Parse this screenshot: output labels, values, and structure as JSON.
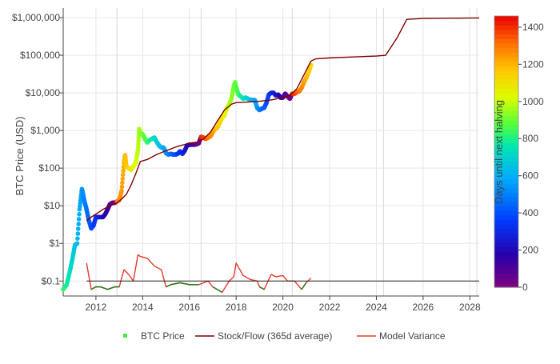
{
  "chart_data": {
    "type": "scatter",
    "title": "",
    "ylabel": "BTC Price (USD)",
    "xlabel": "",
    "y_scale": "log",
    "x_ticks": [
      "2012",
      "2014",
      "2016",
      "2018",
      "2020",
      "2022",
      "2024",
      "2026",
      "2028"
    ],
    "y_ticks": [
      {
        "value": 0.1,
        "label": "$0.1"
      },
      {
        "value": 1,
        "label": "$1"
      },
      {
        "value": 10,
        "label": "$10"
      },
      {
        "value": 100,
        "label": "$100"
      },
      {
        "value": 1000,
        "label": "$1,000"
      },
      {
        "value": 10000,
        "label": "$10,000"
      },
      {
        "value": 100000,
        "label": "$100,000"
      },
      {
        "value": 1000000,
        "label": "$1,000,000"
      }
    ],
    "xlim": [
      2010.6,
      2028.4
    ],
    "ylim": [
      0.04,
      1800000
    ],
    "grid": true,
    "legend_position": "bottom",
    "colorbar": {
      "label": "Days until next halving",
      "range": [
        0,
        1460
      ],
      "ticks": [
        0,
        200,
        400,
        600,
        800,
        1000,
        1200,
        1400
      ]
    },
    "legend": [
      {
        "label": "BTC Price",
        "color": "#44ee44",
        "kind": "marker"
      },
      {
        "label": "Stock/Flow (365d average)",
        "color": "#800000",
        "kind": "line"
      },
      {
        "label": "Model Variance",
        "color": "#e8372a",
        "kind": "line"
      }
    ],
    "halvings": [
      2012.9,
      2016.5,
      2020.4,
      2024.3,
      2028.3
    ],
    "series": [
      {
        "name": "BTC Price",
        "kind": "scatter",
        "x": [
          2010.6,
          2010.75,
          2010.9,
          2011.0,
          2011.1,
          2011.2,
          2011.3,
          2011.4,
          2011.45,
          2011.5,
          2011.6,
          2011.7,
          2011.8,
          2011.9,
          2012.0,
          2012.1,
          2012.2,
          2012.3,
          2012.4,
          2012.5,
          2012.6,
          2012.7,
          2012.8,
          2012.9,
          2013.0,
          2013.1,
          2013.2,
          2013.25,
          2013.3,
          2013.4,
          2013.5,
          2013.6,
          2013.7,
          2013.8,
          2013.85,
          2013.92,
          2014.0,
          2014.1,
          2014.2,
          2014.3,
          2014.4,
          2014.5,
          2014.6,
          2014.7,
          2014.8,
          2014.9,
          2015.0,
          2015.1,
          2015.2,
          2015.3,
          2015.4,
          2015.5,
          2015.6,
          2015.7,
          2015.8,
          2015.9,
          2016.0,
          2016.1,
          2016.2,
          2016.3,
          2016.4,
          2016.5,
          2016.6,
          2016.7,
          2016.8,
          2016.9,
          2017.0,
          2017.1,
          2017.2,
          2017.3,
          2017.4,
          2017.5,
          2017.6,
          2017.7,
          2017.8,
          2017.9,
          2017.96,
          2018.0,
          2018.1,
          2018.2,
          2018.3,
          2018.4,
          2018.5,
          2018.6,
          2018.7,
          2018.8,
          2018.9,
          2019.0,
          2019.1,
          2019.2,
          2019.3,
          2019.4,
          2019.5,
          2019.6,
          2019.7,
          2019.8,
          2019.9,
          2020.0,
          2020.1,
          2020.2,
          2020.3,
          2020.4,
          2020.5,
          2020.6,
          2020.7,
          2020.8,
          2020.9,
          2021.0,
          2021.1,
          2021.2
        ],
        "y": [
          0.06,
          0.08,
          0.2,
          0.4,
          0.9,
          1.0,
          8,
          28,
          20,
          14,
          8,
          4,
          2.5,
          3,
          5,
          5,
          5,
          5,
          6,
          8,
          11,
          12,
          12,
          13,
          14,
          25,
          140,
          220,
          110,
          100,
          90,
          110,
          140,
          300,
          1100,
          800,
          800,
          600,
          480,
          560,
          600,
          650,
          500,
          400,
          350,
          350,
          250,
          230,
          240,
          230,
          230,
          240,
          280,
          240,
          290,
          400,
          420,
          420,
          420,
          430,
          460,
          680,
          650,
          600,
          650,
          700,
          900,
          1100,
          1200,
          1600,
          2200,
          2500,
          4000,
          4800,
          7000,
          15000,
          19000,
          14000,
          9000,
          8000,
          7000,
          7500,
          7000,
          6500,
          6500,
          6400,
          4000,
          3500,
          3800,
          4000,
          5500,
          9000,
          10000,
          10000,
          8500,
          9000,
          7500,
          7500,
          9500,
          8000,
          7000,
          9500,
          9500,
          10500,
          11000,
          13500,
          19000,
          25000,
          35000,
          55000
        ]
      },
      {
        "name": "Stock/Flow (365d average)",
        "kind": "line",
        "x": [
          2011.6,
          2011.8,
          2012.0,
          2012.3,
          2012.6,
          2012.9,
          2013.1,
          2013.3,
          2013.5,
          2013.7,
          2013.9,
          2014.2,
          2014.6,
          2015.0,
          2015.5,
          2016.0,
          2016.4,
          2016.6,
          2016.9,
          2017.2,
          2017.5,
          2017.8,
          2018.0,
          2018.5,
          2019.0,
          2019.5,
          2020.0,
          2020.3,
          2020.6,
          2020.9,
          2021.2,
          2021.4,
          2022.0,
          2023.0,
          2024.0,
          2024.4,
          2024.9,
          2025.3,
          2026.0,
          2027.0,
          2028.4
        ],
        "y": [
          4,
          5,
          6,
          8,
          10,
          12,
          15,
          20,
          35,
          70,
          150,
          170,
          230,
          290,
          380,
          460,
          500,
          600,
          900,
          1800,
          3500,
          5000,
          5500,
          5700,
          6000,
          6500,
          7500,
          8500,
          13000,
          30000,
          70000,
          80000,
          85000,
          90000,
          95000,
          100000,
          300000,
          900000,
          950000,
          960000,
          980000
        ]
      },
      {
        "name": "Model Variance",
        "kind": "line",
        "x": [
          2011.6,
          2011.8,
          2012.0,
          2012.2,
          2012.5,
          2012.8,
          2013.0,
          2013.2,
          2013.4,
          2013.6,
          2013.8,
          2013.9,
          2014.2,
          2014.5,
          2014.8,
          2015.0,
          2015.2,
          2015.6,
          2016.0,
          2016.4,
          2016.8,
          2017.0,
          2017.4,
          2017.7,
          2017.9,
          2018.0,
          2018.3,
          2018.6,
          2018.9,
          2019.0,
          2019.2,
          2019.5,
          2019.7,
          2020.0,
          2020.2,
          2020.5,
          2020.8,
          2021.0,
          2021.2
        ],
        "y": [
          0.3,
          0.06,
          0.07,
          0.07,
          0.06,
          0.07,
          0.07,
          0.2,
          0.15,
          0.1,
          0.5,
          0.45,
          0.4,
          0.25,
          0.2,
          0.07,
          0.08,
          0.09,
          0.08,
          0.08,
          0.1,
          0.07,
          0.05,
          0.1,
          0.13,
          0.3,
          0.14,
          0.11,
          0.1,
          0.07,
          0.06,
          0.15,
          0.13,
          0.14,
          0.1,
          0.1,
          0.06,
          0.09,
          0.12
        ]
      }
    ]
  }
}
